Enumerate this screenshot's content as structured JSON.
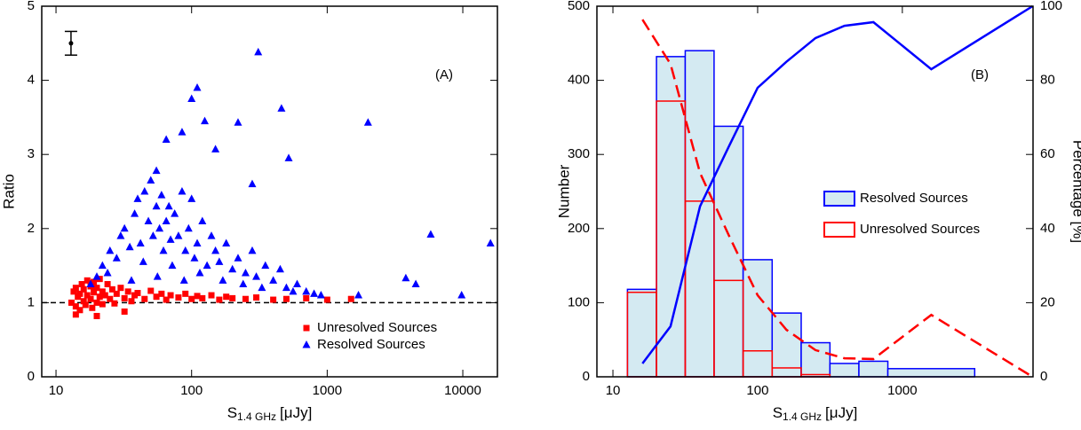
{
  "chart_data": [
    {
      "type": "scatter",
      "panel_label": "(A)",
      "y_label": "Ratio",
      "x_label_symbol": "S",
      "x_label_subscript": "1.4 GHz",
      "x_label_unit": "[μJy]",
      "x_log": true,
      "xlim": [
        7.85,
        18000
      ],
      "xticks": [
        10,
        100,
        1000,
        10000
      ],
      "ylim": [
        0,
        5
      ],
      "yticks": [
        0,
        1,
        2,
        3,
        4,
        5
      ],
      "hline": 1,
      "legend": "lower right",
      "errorbar": {
        "x": 12.9,
        "y": 4.5,
        "err": 0.16
      },
      "series": [
        {
          "name": "Unresolved Sources",
          "color": "#ff0000",
          "marker": "square",
          "x": [
            13,
            13.5,
            14,
            14,
            14.5,
            15,
            15,
            15.5,
            16,
            16,
            16.5,
            17,
            17,
            18,
            18,
            18.5,
            19,
            19,
            20,
            20,
            21,
            21,
            22,
            22,
            23,
            24,
            25,
            26,
            27,
            28,
            30,
            32,
            34,
            36,
            38,
            40,
            45,
            50,
            55,
            60,
            65,
            70,
            80,
            90,
            100,
            110,
            120,
            140,
            160,
            180,
            200,
            250,
            300,
            400,
            500,
            700,
            1000,
            1500,
            14,
            20,
            32
          ],
          "values": [
            1.0,
            1.15,
            0.95,
            1.2,
            1.08,
            0.9,
            1.12,
            1.25,
            1.02,
            1.18,
            0.97,
            1.1,
            1.3,
            1.05,
            1.22,
            0.93,
            1.14,
            1.28,
            1.0,
            1.2,
            1.08,
            1.32,
            0.98,
            1.15,
            1.1,
            1.25,
            1.05,
            1.18,
            0.99,
            1.12,
            1.2,
            1.06,
            1.15,
            1.02,
            1.1,
            1.13,
            1.05,
            1.16,
            1.08,
            1.12,
            1.04,
            1.1,
            1.07,
            1.12,
            1.05,
            1.09,
            1.06,
            1.1,
            1.04,
            1.08,
            1.06,
            1.05,
            1.07,
            1.04,
            1.05,
            1.06,
            1.04,
            1.05,
            0.84,
            0.82,
            0.88
          ]
        },
        {
          "name": "Resolved Sources",
          "color": "#0000ff",
          "marker": "triangle",
          "x": [
            310,
            110,
            100,
            460,
            125,
            220,
            2000,
            85,
            65,
            150,
            520,
            55,
            280,
            5800,
            16000,
            3800,
            4500,
            9800,
            1700,
            20,
            22,
            25,
            28,
            30,
            32,
            35,
            38,
            40,
            42,
            45,
            48,
            50,
            52,
            55,
            58,
            60,
            62,
            65,
            68,
            70,
            75,
            80,
            85,
            90,
            95,
            100,
            105,
            110,
            120,
            130,
            140,
            150,
            160,
            180,
            200,
            220,
            250,
            280,
            300,
            350,
            400,
            450,
            500,
            600,
            700,
            800,
            900,
            18,
            24,
            36,
            44,
            56,
            72,
            88,
            115,
            170,
            240,
            330,
            560
          ],
          "values": [
            4.38,
            3.9,
            3.75,
            3.62,
            3.45,
            3.43,
            3.43,
            3.3,
            3.2,
            3.07,
            2.95,
            2.78,
            2.6,
            1.92,
            1.8,
            1.33,
            1.25,
            1.1,
            1.1,
            1.35,
            1.5,
            1.7,
            1.6,
            1.9,
            2.0,
            1.75,
            2.2,
            2.4,
            1.8,
            2.5,
            2.1,
            2.65,
            1.9,
            2.3,
            2.0,
            2.45,
            1.7,
            2.1,
            2.3,
            1.85,
            2.2,
            1.9,
            2.5,
            1.7,
            2.0,
            2.4,
            1.6,
            1.8,
            2.1,
            1.5,
            1.9,
            1.7,
            1.55,
            1.8,
            1.45,
            1.6,
            1.4,
            1.7,
            1.35,
            1.5,
            1.3,
            1.45,
            1.2,
            1.25,
            1.15,
            1.12,
            1.1,
            1.25,
            1.4,
            1.3,
            1.55,
            1.35,
            1.5,
            1.3,
            1.4,
            1.3,
            1.25,
            1.2,
            1.15
          ]
        }
      ]
    },
    {
      "type": "histogram",
      "panel_label": "(B)",
      "y_label": "Number",
      "y2_label": "Percentage [%]",
      "x_label_symbol": "S",
      "x_label_subscript": "1.4 GHz",
      "x_label_unit": "[μJy]",
      "x_log": true,
      "xlim": [
        7.75,
        8000
      ],
      "xticks": [
        10,
        100,
        1000
      ],
      "ylim": [
        0,
        500
      ],
      "yticks": [
        0,
        100,
        200,
        300,
        400,
        500
      ],
      "y2lim": [
        0,
        100
      ],
      "y2ticks": [
        0,
        20,
        40,
        60,
        80,
        100
      ],
      "legend": "center right",
      "bins": [
        12.6,
        20,
        31.6,
        50,
        79.4,
        126,
        200,
        316,
        501,
        794,
        3162
      ],
      "series": [
        {
          "name": "Resolved Sources",
          "color": "#0000ff",
          "fill": "#d4eaf2",
          "values": [
            118,
            432,
            440,
            338,
            158,
            86,
            46,
            18,
            21,
            11
          ]
        },
        {
          "name": "Unresolved Sources",
          "color": "#ff0000",
          "fill": "none",
          "values": [
            114,
            372,
            237,
            130,
            35,
            12,
            3,
            0,
            0,
            0
          ]
        }
      ],
      "lines": [
        {
          "color": "#0000ff",
          "dashed": false,
          "axis": "y2",
          "x": [
            16,
            25,
            40,
            63,
            100,
            158,
            251,
            398,
            631,
            1585,
            7943
          ],
          "values": [
            3.6,
            13.6,
            46,
            62,
            78,
            85,
            91.4,
            94.7,
            95.7,
            83,
            100
          ]
        },
        {
          "color": "#ff0000",
          "dashed": true,
          "axis": "y2",
          "x": [
            16,
            25,
            40,
            63,
            100,
            158,
            251,
            398,
            631,
            1585,
            7943
          ],
          "values": [
            96.4,
            84.4,
            55,
            38.3,
            22,
            12.7,
            7.2,
            5,
            4.8,
            16.7,
            0
          ]
        }
      ]
    }
  ]
}
